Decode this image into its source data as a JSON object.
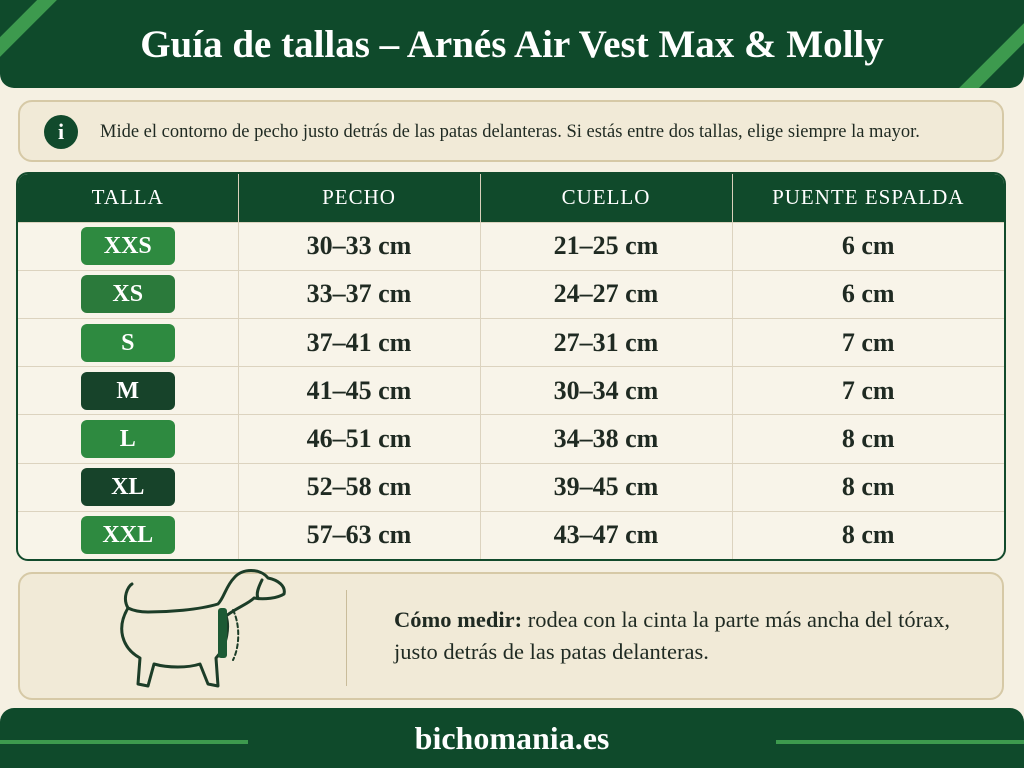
{
  "header": {
    "title": "Guía de tallas – Arnés Air Vest Max & Molly"
  },
  "info": {
    "icon": "i",
    "text": "Mide el contorno de pecho justo detrás de las patas delanteras. Si estás entre dos tallas, elige siempre la mayor."
  },
  "table": {
    "headers": [
      "TALLA",
      "PECHO",
      "CUELLO",
      "PUENTE ESPALDA"
    ],
    "rows": [
      [
        "XXS",
        "30–33 cm",
        "21–25 cm",
        "6 cm"
      ],
      [
        "XS",
        "33–37 cm",
        "24–27 cm",
        "6 cm"
      ],
      [
        "S",
        "37–41 cm",
        "27–31 cm",
        "7 cm"
      ],
      [
        "M",
        "41–45 cm",
        "30–34 cm",
        "7 cm"
      ],
      [
        "L",
        "46–51 cm",
        "34–38 cm",
        "8 cm"
      ],
      [
        "XL",
        "52–58 cm",
        "39–45 cm",
        "8 cm"
      ],
      [
        "XXL",
        "57–63 cm",
        "43–47 cm",
        "8 cm"
      ]
    ]
  },
  "howto": {
    "label": "Cómo medir:",
    "text": "rodea con la cinta la parte más ancha del tórax, justo detrás de las patas delanteras."
  },
  "footer": {
    "text": "bichomania.es"
  }
}
